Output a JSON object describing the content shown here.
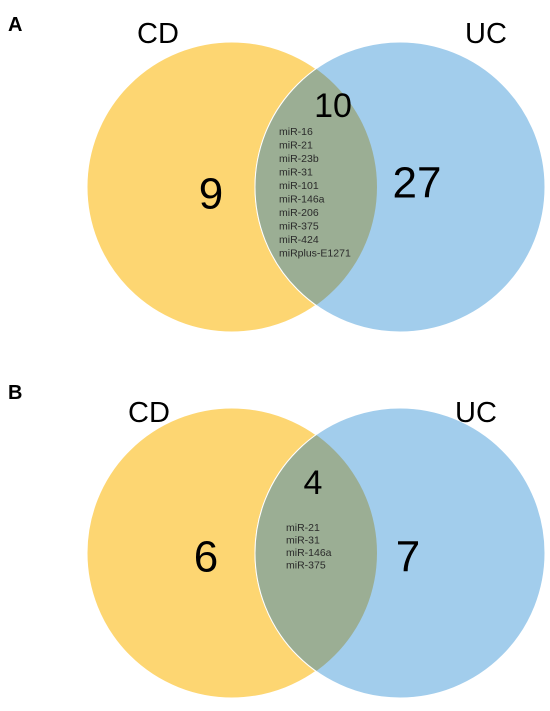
{
  "colors": {
    "cd": "#FDD672",
    "uc": "#A2CDEC",
    "overlap": "#9BAE94"
  },
  "panels": [
    {
      "letter": "A",
      "set_a": {
        "label": "CD",
        "only_count": "9"
      },
      "set_b": {
        "label": "UC",
        "only_count": "27"
      },
      "overlap": {
        "count": "10",
        "members": [
          "miR-16",
          "miR-21",
          "miR-23b",
          "miR-31",
          "miR-101",
          "miR-146a",
          "miR-206",
          "miR-375",
          "miR-424",
          "miRplus-E1271"
        ]
      }
    },
    {
      "letter": "B",
      "set_a": {
        "label": "CD",
        "only_count": "6"
      },
      "set_b": {
        "label": "UC",
        "only_count": "7"
      },
      "overlap": {
        "count": "4",
        "members": [
          "miR-21",
          "miR-31",
          "miR-146a",
          "miR-375"
        ]
      }
    }
  ]
}
